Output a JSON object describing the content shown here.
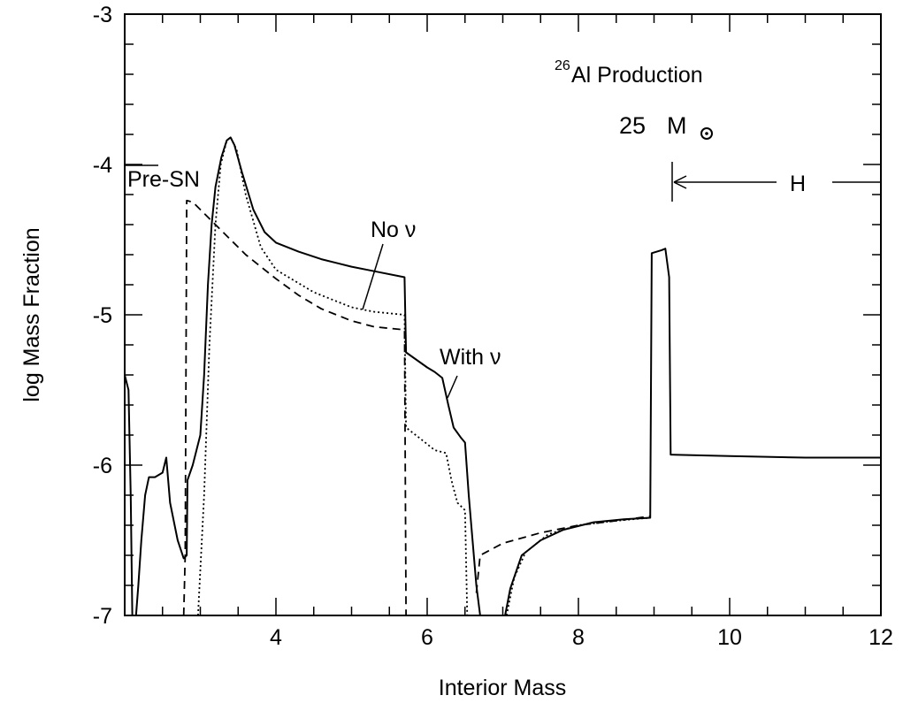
{
  "chart_data": {
    "type": "line",
    "xlabel": "Interior Mass",
    "ylabel": "log Mass Fraction",
    "xlim": [
      2,
      12
    ],
    "ylim": [
      -7,
      -3
    ],
    "xticks": [
      4,
      6,
      8,
      10,
      12
    ],
    "yticks": [
      -7,
      -6,
      -5,
      -4,
      -3
    ],
    "xtick_labels": [
      "4",
      "6",
      "8",
      "10",
      "12"
    ],
    "ytick_labels": [
      "-7",
      "-6",
      "-5",
      "-4",
      "-3"
    ],
    "grid": false,
    "annotations": {
      "title_sup": "26",
      "title_main": "Al Production",
      "mass_num": "25",
      "mass_unit": "M",
      "pre_sn": "Pre-SN",
      "no_nu": "No ν",
      "with_nu": "With ν",
      "h_label": "H"
    },
    "series": [
      {
        "style": "solid",
        "points": [
          [
            2.0,
            -5.4
          ],
          [
            2.05,
            -5.5
          ],
          [
            2.08,
            -6.2
          ],
          [
            2.1,
            -7.0
          ],
          [
            2.15,
            -7.0
          ],
          [
            2.18,
            -6.8
          ],
          [
            2.22,
            -6.5
          ],
          [
            2.27,
            -6.2
          ],
          [
            2.32,
            -6.08
          ],
          [
            2.4,
            -6.08
          ],
          [
            2.5,
            -6.05
          ],
          [
            2.55,
            -5.95
          ],
          [
            2.6,
            -6.25
          ],
          [
            2.7,
            -6.5
          ],
          [
            2.78,
            -6.62
          ],
          [
            2.82,
            -6.6
          ],
          [
            2.83,
            -6.1
          ],
          [
            2.9,
            -6.0
          ],
          [
            3.0,
            -5.8
          ],
          [
            3.05,
            -5.4
          ],
          [
            3.1,
            -4.8
          ],
          [
            3.15,
            -4.4
          ],
          [
            3.2,
            -4.15
          ],
          [
            3.28,
            -3.95
          ],
          [
            3.35,
            -3.84
          ],
          [
            3.4,
            -3.82
          ],
          [
            3.45,
            -3.87
          ],
          [
            3.55,
            -4.05
          ],
          [
            3.7,
            -4.3
          ],
          [
            3.85,
            -4.45
          ],
          [
            4.0,
            -4.52
          ],
          [
            4.3,
            -4.58
          ],
          [
            4.6,
            -4.63
          ],
          [
            5.0,
            -4.68
          ],
          [
            5.3,
            -4.71
          ],
          [
            5.7,
            -4.75
          ],
          [
            5.72,
            -5.25
          ],
          [
            6.0,
            -5.35
          ],
          [
            6.1,
            -5.38
          ],
          [
            6.2,
            -5.42
          ],
          [
            6.28,
            -5.6
          ],
          [
            6.35,
            -5.75
          ],
          [
            6.45,
            -5.82
          ],
          [
            6.5,
            -5.85
          ],
          [
            6.55,
            -6.2
          ],
          [
            6.65,
            -6.8
          ],
          [
            6.7,
            -7.0
          ],
          [
            7.03,
            -7.0
          ],
          [
            7.1,
            -6.82
          ],
          [
            7.25,
            -6.6
          ],
          [
            7.5,
            -6.5
          ],
          [
            7.8,
            -6.43
          ],
          [
            8.2,
            -6.38
          ],
          [
            8.6,
            -6.36
          ],
          [
            8.95,
            -6.35
          ],
          [
            8.97,
            -4.59
          ],
          [
            9.1,
            -4.57
          ],
          [
            9.15,
            -4.56
          ],
          [
            9.2,
            -4.75
          ],
          [
            9.22,
            -5.93
          ],
          [
            10.0,
            -5.94
          ],
          [
            11.0,
            -5.95
          ],
          [
            12.0,
            -5.95
          ]
        ]
      },
      {
        "style": "dashed",
        "points": [
          [
            2.78,
            -7.0
          ],
          [
            2.8,
            -6.6
          ],
          [
            2.82,
            -4.24
          ],
          [
            2.9,
            -4.25
          ],
          [
            3.0,
            -4.3
          ],
          [
            3.2,
            -4.4
          ],
          [
            3.4,
            -4.5
          ],
          [
            3.6,
            -4.6
          ],
          [
            3.8,
            -4.68
          ],
          [
            4.0,
            -4.76
          ],
          [
            4.3,
            -4.87
          ],
          [
            4.6,
            -4.96
          ],
          [
            5.0,
            -5.04
          ],
          [
            5.3,
            -5.08
          ],
          [
            5.7,
            -5.1
          ],
          [
            5.72,
            -7.0
          ]
        ]
      },
      {
        "style": "dashed",
        "points": [
          [
            6.65,
            -6.85
          ],
          [
            6.7,
            -6.6
          ],
          [
            7.0,
            -6.52
          ],
          [
            7.5,
            -6.45
          ],
          [
            8.0,
            -6.4
          ],
          [
            8.5,
            -6.37
          ],
          [
            8.95,
            -6.34
          ]
        ]
      },
      {
        "style": "dotted",
        "points": [
          [
            2.97,
            -7.0
          ],
          [
            3.05,
            -6.2
          ],
          [
            3.12,
            -5.2
          ],
          [
            3.2,
            -4.4
          ],
          [
            3.27,
            -4.0
          ],
          [
            3.35,
            -3.84
          ],
          [
            3.4,
            -3.82
          ],
          [
            3.48,
            -3.9
          ],
          [
            3.6,
            -4.2
          ],
          [
            3.8,
            -4.55
          ],
          [
            4.0,
            -4.7
          ],
          [
            4.5,
            -4.85
          ],
          [
            5.0,
            -4.95
          ],
          [
            5.3,
            -4.98
          ],
          [
            5.7,
            -5.0
          ],
          [
            5.72,
            -5.75
          ],
          [
            5.9,
            -5.82
          ],
          [
            6.1,
            -5.9
          ],
          [
            6.25,
            -5.92
          ],
          [
            6.32,
            -6.1
          ],
          [
            6.4,
            -6.25
          ],
          [
            6.5,
            -6.3
          ],
          [
            6.53,
            -7.0
          ]
        ]
      },
      {
        "style": "dotted",
        "points": [
          [
            7.05,
            -7.0
          ],
          [
            7.15,
            -6.75
          ],
          [
            7.3,
            -6.58
          ],
          [
            7.6,
            -6.46
          ],
          [
            8.0,
            -6.4
          ],
          [
            8.5,
            -6.37
          ],
          [
            8.95,
            -6.35
          ]
        ]
      }
    ]
  }
}
